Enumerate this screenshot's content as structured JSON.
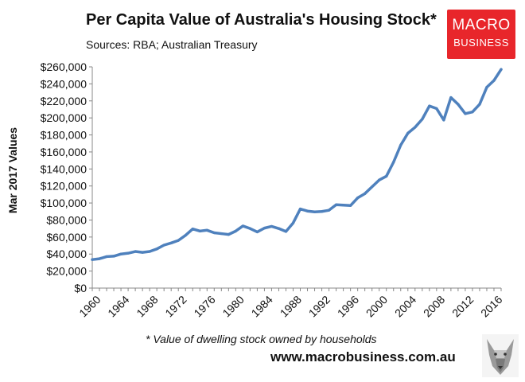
{
  "header": {
    "title": "Per Capita Value of Australia's Housing Stock*",
    "sources": "Sources: RBA; Australian Treasury"
  },
  "logo": {
    "line1": "MACRO",
    "line2": "BUSINESS",
    "color": "#e8262b"
  },
  "footer": {
    "footnote": "* Value of dwelling stock owned by households",
    "website": "www.macrobusiness.com.au"
  },
  "colors": {
    "line": "#4f81bd",
    "axis": "#888888"
  },
  "chart_data": {
    "type": "line",
    "title": "Per Capita Value of Australia's Housing Stock*",
    "subtitle": "Sources: RBA; Australian Treasury",
    "xlabel": "",
    "ylabel": "Mar 2017 Values",
    "xlim": [
      1960,
      2017
    ],
    "ylim": [
      0,
      260000
    ],
    "x_ticks": [
      1960,
      1964,
      1968,
      1972,
      1976,
      1980,
      1984,
      1988,
      1992,
      1996,
      2000,
      2004,
      2008,
      2012,
      2016
    ],
    "y_ticks": [
      {
        "value": 0,
        "label": "$0"
      },
      {
        "value": 20000,
        "label": "$20,000"
      },
      {
        "value": 40000,
        "label": "$40,000"
      },
      {
        "value": 60000,
        "label": "$60,000"
      },
      {
        "value": 80000,
        "label": "$80,000"
      },
      {
        "value": 100000,
        "label": "$100,000"
      },
      {
        "value": 120000,
        "label": "$120,000"
      },
      {
        "value": 140000,
        "label": "$140,000"
      },
      {
        "value": 160000,
        "label": "$160,000"
      },
      {
        "value": 180000,
        "label": "$180,000"
      },
      {
        "value": 200000,
        "label": "$200,000"
      },
      {
        "value": 220000,
        "label": "$220,000"
      },
      {
        "value": 240000,
        "label": "$240,000"
      },
      {
        "value": 260000,
        "label": "$260,000"
      }
    ],
    "grid": false,
    "legend": "none",
    "series": [
      {
        "name": "Per capita value of housing stock",
        "x": [
          1960,
          1961,
          1962,
          1963,
          1964,
          1965,
          1966,
          1967,
          1968,
          1969,
          1970,
          1971,
          1972,
          1973,
          1974,
          1975,
          1976,
          1977,
          1978,
          1979,
          1980,
          1981,
          1982,
          1983,
          1984,
          1985,
          1986,
          1987,
          1988,
          1989,
          1990,
          1991,
          1992,
          1993,
          1994,
          1995,
          1996,
          1997,
          1998,
          1999,
          2000,
          2001,
          2002,
          2003,
          2004,
          2005,
          2006,
          2007,
          2008,
          2009,
          2010,
          2011,
          2012,
          2013,
          2014,
          2015,
          2016,
          2017
        ],
        "values": [
          33500,
          34500,
          37000,
          37500,
          40000,
          41000,
          43000,
          42000,
          43000,
          46000,
          50500,
          53000,
          56000,
          62000,
          69500,
          67000,
          68000,
          65000,
          64000,
          63000,
          67000,
          73000,
          70000,
          66000,
          70500,
          72500,
          70000,
          66500,
          76500,
          93000,
          90500,
          89500,
          90000,
          91500,
          98000,
          97500,
          97000,
          106000,
          111000,
          119000,
          127000,
          131500,
          148000,
          168000,
          182000,
          189000,
          198500,
          214000,
          211000,
          197500,
          224000,
          216000,
          205000,
          207000,
          216000,
          236000,
          244000,
          257000
        ]
      }
    ]
  }
}
